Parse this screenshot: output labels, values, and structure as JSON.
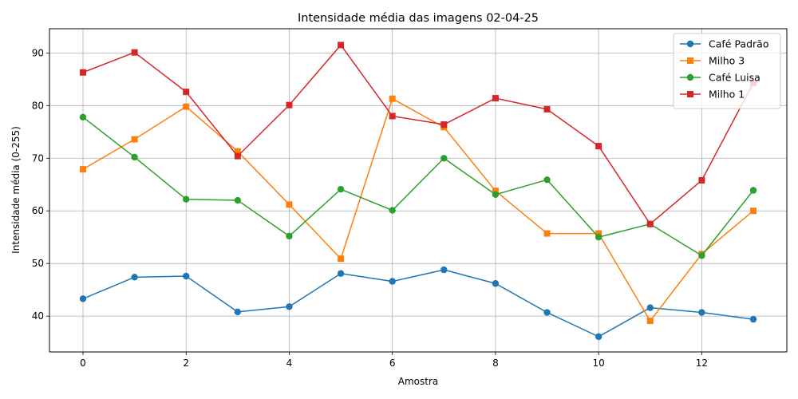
{
  "chart_data": {
    "type": "line",
    "title": "Intensidade média das imagens 02-04-25",
    "xlabel": "Amostra",
    "ylabel": "Intensidade média (0-255)",
    "xlim": [
      -0.65,
      13.65
    ],
    "ylim": [
      33.2,
      94.6
    ],
    "xticks": [
      0,
      2,
      4,
      6,
      8,
      10,
      12
    ],
    "yticks": [
      40,
      50,
      60,
      70,
      80,
      90
    ],
    "grid": true,
    "legend_position": "upper right",
    "x": [
      0,
      1,
      2,
      3,
      4,
      5,
      6,
      7,
      8,
      9,
      10,
      11,
      12,
      13
    ],
    "series": [
      {
        "name": "Café Padrão",
        "color": "#1f77b4",
        "marker": "circle",
        "values": [
          43.3,
          47.4,
          47.6,
          40.8,
          41.8,
          48.1,
          46.6,
          48.8,
          46.2,
          40.7,
          36.1,
          41.6,
          40.7,
          39.4
        ]
      },
      {
        "name": "Milho 3",
        "color": "#ff7f0e",
        "marker": "square",
        "values": [
          67.9,
          73.6,
          79.8,
          71.3,
          61.2,
          50.9,
          81.3,
          75.9,
          63.8,
          55.7,
          55.7,
          39.1,
          51.8,
          60.0
        ]
      },
      {
        "name": "Café Luisa",
        "color": "#2ca02c",
        "marker": "circle",
        "values": [
          77.8,
          70.2,
          62.2,
          62.0,
          55.2,
          64.1,
          60.1,
          70.0,
          63.1,
          65.9,
          55.0,
          57.5,
          51.5,
          63.9
        ]
      },
      {
        "name": "Milho 1",
        "color": "#d62728",
        "marker": "square",
        "values": [
          86.3,
          90.1,
          82.6,
          70.4,
          80.1,
          91.5,
          78.0,
          76.4,
          81.4,
          79.3,
          72.3,
          57.5,
          65.8,
          84.3
        ]
      }
    ]
  }
}
